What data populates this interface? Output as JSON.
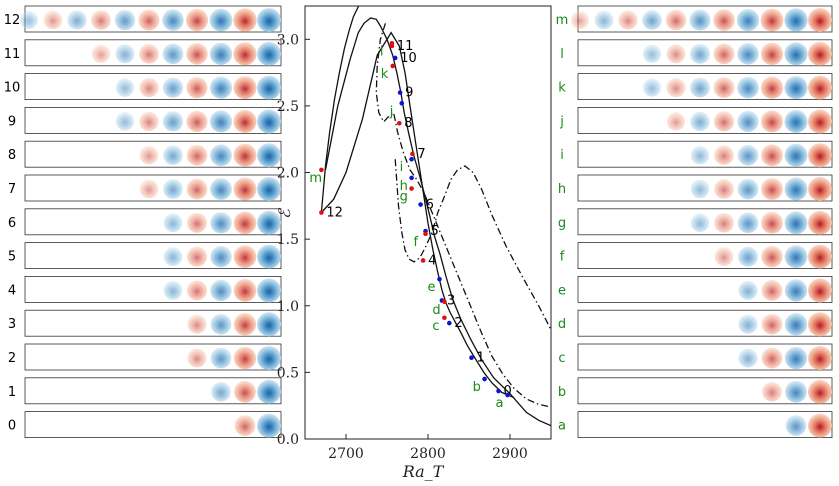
{
  "chart_data": {
    "type": "line",
    "xlabel": "Ra_T",
    "ylabel": "ℰ",
    "xlim": [
      2650,
      2950
    ],
    "ylim": [
      0.0,
      3.25
    ],
    "xticks": [
      "2700",
      "2800",
      "2900"
    ],
    "yticks": [
      "0.0",
      "0.5",
      "1.0",
      "1.5",
      "2.0",
      "2.5",
      "3.0"
    ],
    "series": [
      {
        "style": "solid",
        "x": [
          2675,
          2690,
          2705,
          2715,
          2722,
          2730,
          2737,
          2742,
          2750,
          2757,
          2762,
          2767,
          2771,
          2777,
          2783,
          2790,
          2796,
          2802,
          2808,
          2815,
          2822,
          2830,
          2840,
          2852,
          2865,
          2880,
          2900,
          2920,
          2935,
          2950
        ],
        "y": [
          2.02,
          2.5,
          2.85,
          3.05,
          3.12,
          3.16,
          3.15,
          3.1,
          3.0,
          2.88,
          2.75,
          2.6,
          2.45,
          2.28,
          2.12,
          1.97,
          1.83,
          1.68,
          1.52,
          1.38,
          1.22,
          1.05,
          0.9,
          0.75,
          0.6,
          0.46,
          0.34,
          0.2,
          0.14,
          0.1
        ]
      },
      {
        "style": "solid",
        "x": [
          2670,
          2675,
          2680,
          2686,
          2692,
          2698,
          2704,
          2709,
          2713,
          2717
        ],
        "y": [
          1.7,
          2.05,
          2.3,
          2.55,
          2.75,
          2.93,
          3.07,
          3.17,
          3.22,
          3.27
        ]
      },
      {
        "style": "solid",
        "x": [
          2670,
          2685,
          2700,
          2720,
          2738,
          2755,
          2765,
          2772,
          2778,
          2785,
          2793,
          2800,
          2806,
          2812,
          2817,
          2822,
          2827,
          2833,
          2840,
          2848,
          2858,
          2868,
          2878,
          2890,
          2905
        ],
        "y": [
          1.7,
          1.8,
          2.0,
          2.4,
          2.88,
          3.05,
          2.95,
          2.75,
          2.5,
          2.22,
          1.9,
          1.62,
          1.42,
          1.25,
          1.12,
          1.02,
          0.95,
          0.88,
          0.8,
          0.7,
          0.6,
          0.5,
          0.42,
          0.35,
          0.31
        ]
      },
      {
        "style": "dashdot",
        "x": [
          2760,
          2764,
          2768,
          2772,
          2777,
          2783,
          2790,
          2797,
          2805,
          2812,
          2820,
          2828,
          2836,
          2845,
          2855,
          2865,
          2878,
          2895,
          2915,
          2935,
          2950
        ],
        "y": [
          2.1,
          1.75,
          1.55,
          1.42,
          1.35,
          1.33,
          1.36,
          1.44,
          1.55,
          1.7,
          1.82,
          1.95,
          2.02,
          2.05,
          2.0,
          1.88,
          1.68,
          1.45,
          1.22,
          1.0,
          0.82
        ]
      },
      {
        "style": "dashdot",
        "x": [
          2748,
          2742,
          2738,
          2737,
          2740,
          2746,
          2752,
          2758,
          2763,
          2770,
          2778,
          2786,
          2795,
          2805,
          2815,
          2825,
          2835,
          2845,
          2855,
          2865,
          2878,
          2892,
          2905,
          2920,
          2935,
          2950
        ],
        "y": [
          3.12,
          3.0,
          2.8,
          2.6,
          2.45,
          2.38,
          2.42,
          2.45,
          2.3,
          2.15,
          2.02,
          1.95,
          1.85,
          1.7,
          1.55,
          1.4,
          1.25,
          1.1,
          0.95,
          0.8,
          0.62,
          0.48,
          0.38,
          0.3,
          0.26,
          0.24
        ]
      }
    ],
    "points": [
      {
        "label": "0",
        "x": 2886,
        "y": 0.36,
        "color": "blue"
      },
      {
        "label": "1",
        "x": 2853,
        "y": 0.61,
        "color": "blue"
      },
      {
        "label": "2",
        "x": 2826,
        "y": 0.87,
        "color": "blue"
      },
      {
        "label": "3",
        "x": 2817,
        "y": 1.04,
        "color": "blue"
      },
      {
        "label": "4",
        "x": 2794,
        "y": 1.34,
        "color": "red"
      },
      {
        "label": "5",
        "x": 2797,
        "y": 1.56,
        "color": "blue"
      },
      {
        "label": "6",
        "x": 2791,
        "y": 1.76,
        "color": "blue"
      },
      {
        "label": "7",
        "x": 2781,
        "y": 2.14,
        "color": "red"
      },
      {
        "label": "8",
        "x": 2765,
        "y": 2.37,
        "color": "red"
      },
      {
        "label": "9",
        "x": 2766,
        "y": 2.6,
        "color": "blue"
      },
      {
        "label": "10",
        "x": 2760,
        "y": 2.86,
        "color": "blue"
      },
      {
        "label": "11",
        "x": 2756,
        "y": 2.95,
        "color": "red"
      },
      {
        "label": "12",
        "x": 2670,
        "y": 1.7,
        "color": "red"
      },
      {
        "label": "a",
        "x": 2897,
        "y": 0.33,
        "color": "blue"
      },
      {
        "label": "b",
        "x": 2869,
        "y": 0.45,
        "color": "blue"
      },
      {
        "label": "c",
        "x": 2820,
        "y": 0.91,
        "color": "red"
      },
      {
        "label": "d",
        "x": 2820,
        "y": 1.03,
        "color": "red"
      },
      {
        "label": "e",
        "x": 2814,
        "y": 1.2,
        "color": "blue"
      },
      {
        "label": "f",
        "x": 2797,
        "y": 1.54,
        "color": "red"
      },
      {
        "label": "g",
        "x": 2780,
        "y": 1.88,
        "color": "red"
      },
      {
        "label": "h",
        "x": 2780,
        "y": 1.96,
        "color": "blue"
      },
      {
        "label": "i",
        "x": 2780,
        "y": 2.1,
        "color": "blue"
      },
      {
        "label": "j",
        "x": 2768,
        "y": 2.52,
        "color": "blue"
      },
      {
        "label": "k",
        "x": 2757,
        "y": 2.8,
        "color": "red"
      },
      {
        "label": "l",
        "x": 2756,
        "y": 2.97,
        "color": "red"
      },
      {
        "label": "m",
        "x": 2670,
        "y": 2.02,
        "color": "red"
      }
    ]
  },
  "panels": {
    "left_labels": [
      "12",
      "11",
      "10",
      "9",
      "8",
      "7",
      "6",
      "5",
      "4",
      "3",
      "2",
      "1",
      "0"
    ],
    "right_labels": [
      "m",
      "l",
      "k",
      "j",
      "i",
      "h",
      "g",
      "f",
      "e",
      "d",
      "c",
      "b",
      "a"
    ],
    "left_counts": [
      11,
      8,
      7,
      7,
      6,
      6,
      5,
      5,
      5,
      4,
      4,
      3,
      2
    ],
    "right_counts": [
      11,
      8,
      8,
      7,
      6,
      6,
      6,
      5,
      4,
      4,
      4,
      3,
      2
    ],
    "left_first_sign": [
      -1,
      1,
      -1,
      -1,
      1,
      1,
      -1,
      -1,
      -1,
      1,
      1,
      -1,
      1
    ],
    "right_first_sign": [
      1,
      -1,
      -1,
      1,
      -1,
      -1,
      -1,
      1,
      -1,
      -1,
      -1,
      1,
      -1
    ],
    "colors": {
      "blue": "#2166ac",
      "red": "#b2182b",
      "point_blue": "#0a14d8",
      "point_red": "#e01010",
      "label_green": "#1a8a1a"
    }
  }
}
